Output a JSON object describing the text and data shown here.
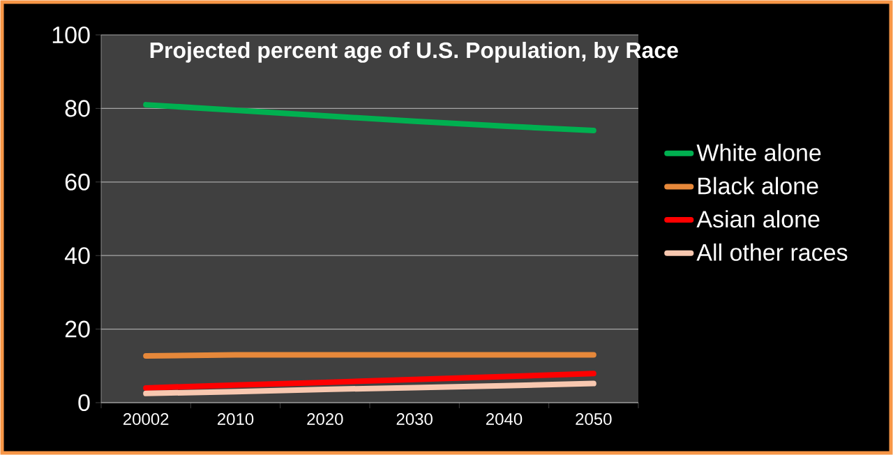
{
  "chart_data": {
    "type": "line",
    "title": "Projected percent age of U.S. Population, by Race",
    "categories": [
      "20002",
      "2010",
      "2020",
      "2030",
      "2040",
      "2050"
    ],
    "ylim": [
      0,
      100
    ],
    "yticks": [
      0,
      20,
      40,
      60,
      80,
      100
    ],
    "grid": "y",
    "legend": "right",
    "marker": "none",
    "line_style": "solid",
    "series": [
      {
        "name": "White alone",
        "color": "#00b050",
        "values": [
          81,
          79.5,
          78,
          76.5,
          75.2,
          74
        ]
      },
      {
        "name": "Black alone",
        "color": "#e6883a",
        "values": [
          12.7,
          13,
          13,
          13,
          13,
          13
        ]
      },
      {
        "name": "Asian alone",
        "color": "#ff0000",
        "values": [
          4,
          4.8,
          5.5,
          6.3,
          7.1,
          7.9
        ]
      },
      {
        "name": "All other races",
        "color": "#f8c8b0",
        "values": [
          2.5,
          3,
          3.6,
          4.1,
          4.6,
          5.2
        ]
      }
    ]
  }
}
